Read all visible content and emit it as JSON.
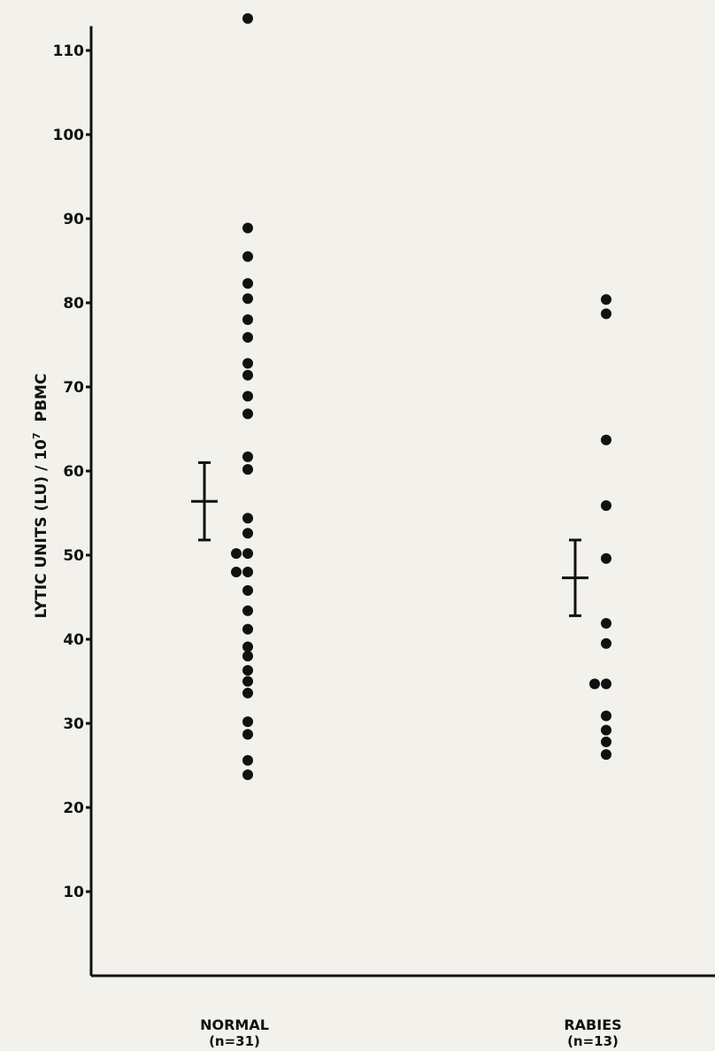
{
  "chart_data": {
    "type": "dot",
    "y_label": {
      "main": "LYTIC UNITS (LU) / 10",
      "superscript": "7",
      "tail": "PBMC"
    },
    "ylim": [
      0,
      115
    ],
    "yticks": [
      10,
      20,
      30,
      40,
      50,
      60,
      70,
      80,
      90,
      100,
      110
    ],
    "color": "#111111",
    "groups": [
      {
        "label": "NORMAL",
        "n_label": "(n=31)",
        "mean": 56.4,
        "error": 4.6,
        "values": [
          113.8,
          88.9,
          85.5,
          82.3,
          80.5,
          78,
          75.9,
          72.8,
          71.4,
          68.9,
          66.8,
          61.7,
          60.2,
          54.4,
          52.6,
          50.2,
          50.2,
          48,
          48,
          45.8,
          43.4,
          41.2,
          39.1,
          38,
          36.3,
          35,
          33.6,
          30.2,
          28.7,
          25.6,
          23.9
        ]
      },
      {
        "label": "RABIES",
        "n_label": "(n=13)",
        "mean": 47.3,
        "error": 4.5,
        "values": [
          80.4,
          78.7,
          63.7,
          55.9,
          49.6,
          41.9,
          39.5,
          34.7,
          34.7,
          30.9,
          29.2,
          27.8,
          26.3
        ]
      }
    ]
  }
}
